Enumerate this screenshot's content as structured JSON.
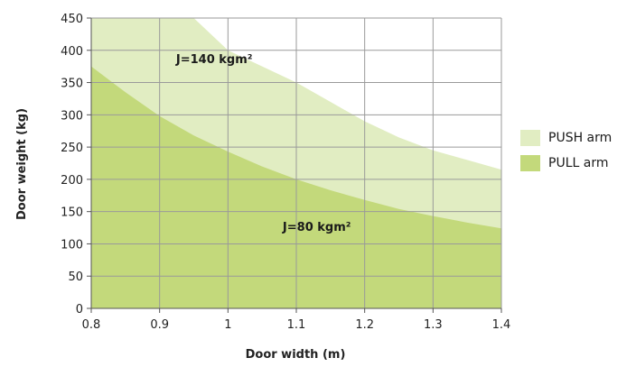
{
  "chart_data": {
    "type": "area",
    "xlabel": "Door width (m)",
    "ylabel": "Door weight (kg)",
    "xlim": [
      0.8,
      1.4
    ],
    "ylim": [
      0,
      450
    ],
    "x_ticks": [
      "0.8",
      "0.9",
      "1",
      "1.1",
      "1.2",
      "1.3",
      "1.4"
    ],
    "y_ticks": [
      "0",
      "50",
      "100",
      "150",
      "200",
      "250",
      "300",
      "350",
      "400",
      "450"
    ],
    "grid": true,
    "legend_position": "right",
    "series": [
      {
        "name": "PUSH arm",
        "color": "#e1edc2",
        "x": [
          0.8,
          0.85,
          0.9,
          0.95,
          1.0,
          1.05,
          1.1,
          1.15,
          1.2,
          1.25,
          1.3,
          1.35,
          1.4
        ],
        "values": [
          450,
          450,
          450,
          450,
          400,
          375,
          350,
          320,
          290,
          265,
          245,
          230,
          215
        ]
      },
      {
        "name": "PULL arm",
        "color": "#c3d97b",
        "x": [
          0.8,
          0.85,
          0.9,
          0.95,
          1.0,
          1.05,
          1.1,
          1.15,
          1.2,
          1.25,
          1.3,
          1.35,
          1.4
        ],
        "values": [
          375,
          335,
          298,
          268,
          243,
          220,
          200,
          183,
          168,
          154,
          143,
          133,
          124
        ]
      }
    ],
    "annotations": [
      {
        "text": "J=140 kgm²",
        "x": 0.98,
        "y": 380
      },
      {
        "text": "J=80 kgm²",
        "x": 1.13,
        "y": 120
      }
    ]
  }
}
